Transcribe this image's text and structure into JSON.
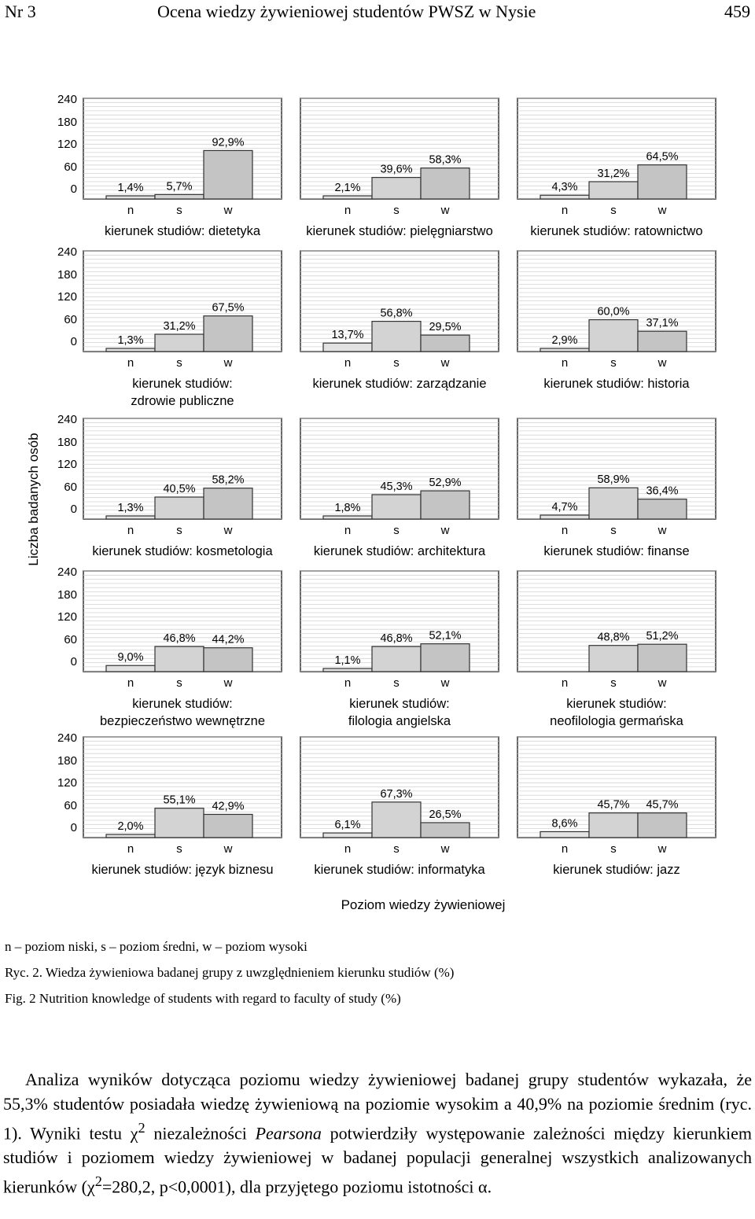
{
  "header": {
    "issue": "Nr 3",
    "title": "Ocena wiedzy żywieniowej studentów PWSZ w Nysie",
    "page_number": "459"
  },
  "figure": {
    "y_axis_label": "Liczba badanych osób",
    "x_axis_label": "Poziom wiedzy żywieniowej",
    "chart_data": {
      "type": "bar",
      "categories": [
        "n",
        "s",
        "w"
      ],
      "yticks": [
        "240",
        "180",
        "120",
        "60",
        "0"
      ],
      "ylim": [
        0,
        240
      ],
      "panels": [
        {
          "label": [
            "kierunek studiów: dietetyka"
          ],
          "labels": [
            "1,4%",
            "5,7%",
            "92,9%"
          ],
          "values": [
            1.4,
            5.7,
            92.9
          ]
        },
        {
          "label": [
            "kierunek studiów: pielęgniarstwo"
          ],
          "labels": [
            "2,1%",
            "39,6%",
            "58,3%"
          ],
          "values": [
            2.1,
            39.6,
            58.3
          ]
        },
        {
          "label": [
            "kierunek studiów: ratownictwo"
          ],
          "labels": [
            "4,3%",
            "31,2%",
            "64,5%"
          ],
          "values": [
            4.3,
            31.2,
            64.5
          ]
        },
        {
          "label": [
            "kierunek studiów:",
            "zdrowie publiczne"
          ],
          "labels": [
            "1,3%",
            "31,2%",
            "67,5%"
          ],
          "values": [
            1.3,
            31.2,
            67.5
          ]
        },
        {
          "label": [
            "kierunek studiów: zarządzanie"
          ],
          "labels": [
            "13,7%",
            "56,8%",
            "29,5%"
          ],
          "values": [
            13.7,
            56.8,
            29.5
          ]
        },
        {
          "label": [
            "kierunek studiów: historia"
          ],
          "labels": [
            "2,9%",
            "60,0%",
            "37,1%"
          ],
          "values": [
            2.9,
            60.0,
            37.1
          ]
        },
        {
          "label": [
            "kierunek studiów: kosmetologia"
          ],
          "labels": [
            "1,3%",
            "40,5%",
            "58,2%"
          ],
          "values": [
            1.3,
            40.5,
            58.2
          ]
        },
        {
          "label": [
            "kierunek studiów: architektura"
          ],
          "labels": [
            "1,8%",
            "45,3%",
            "52,9%"
          ],
          "values": [
            1.8,
            45.3,
            52.9
          ]
        },
        {
          "label": [
            "kierunek studiów: finanse"
          ],
          "labels": [
            "4,7%",
            "58,9%",
            "36,4%"
          ],
          "values": [
            4.7,
            58.9,
            36.4
          ]
        },
        {
          "label": [
            "kierunek studiów:",
            "bezpieczeństwo wewnętrzne"
          ],
          "labels": [
            "9,0%",
            "46,8%",
            "44,2%"
          ],
          "values": [
            9.0,
            46.8,
            44.2
          ]
        },
        {
          "label": [
            "kierunek studiów:",
            "filologia angielska"
          ],
          "labels": [
            "1,1%",
            "46,8%",
            "52,1%"
          ],
          "values": [
            1.1,
            46.8,
            52.1
          ]
        },
        {
          "label": [
            "kierunek studiów:",
            "neofilologia  germańska"
          ],
          "labels": [
            "",
            "48,8%",
            "51,2%"
          ],
          "values": [
            0,
            48.8,
            51.2
          ]
        },
        {
          "label": [
            "kierunek studiów: język biznesu"
          ],
          "labels": [
            "2,0%",
            "55,1%",
            "42,9%"
          ],
          "values": [
            2.0,
            55.1,
            42.9
          ]
        },
        {
          "label": [
            "kierunek studiów: informatyka"
          ],
          "labels": [
            "6,1%",
            "67,3%",
            "26,5%"
          ],
          "values": [
            6.1,
            67.3,
            26.5
          ]
        },
        {
          "label": [
            "kierunek studiów: jazz"
          ],
          "labels": [
            "8,6%",
            "45,7%",
            "45,7%"
          ],
          "values": [
            8.6,
            45.7,
            45.7
          ]
        }
      ]
    }
  },
  "captions": {
    "legend": "n – poziom niski, s – poziom średni, w – poziom wysoki",
    "ryc_pl": "Ryc. 2. Wiedza żywieniowa badanej grupy z uwzględnieniem kierunku studiów (%)",
    "fig_en": "Fig. 2 Nutrition knowledge of students with regard to faculty of study (%)"
  },
  "body": {
    "part1": "Analiza wyników dotycząca poziomu wiedzy żywieniowej badanej grupy studentów wykazała, że 55,3% studentów posiadała wiedzę żywieniową na poziomie wysokim a 40,9% na poziomie średnim (ryc. 1). Wyniki testu χ",
    "sup1": "2",
    "part2": " niezależności ",
    "italic": "Pearsona",
    "part3": " potwierdziły występowanie zależności między kierunkiem studiów i poziomem wiedzy żywieniowej w badanej populacji generalnej wszystkich analizowanych kierunków (χ",
    "sup2": "2",
    "part4": "=280,2, p<0,0001), dla przyjętego poziomu istotności α."
  }
}
